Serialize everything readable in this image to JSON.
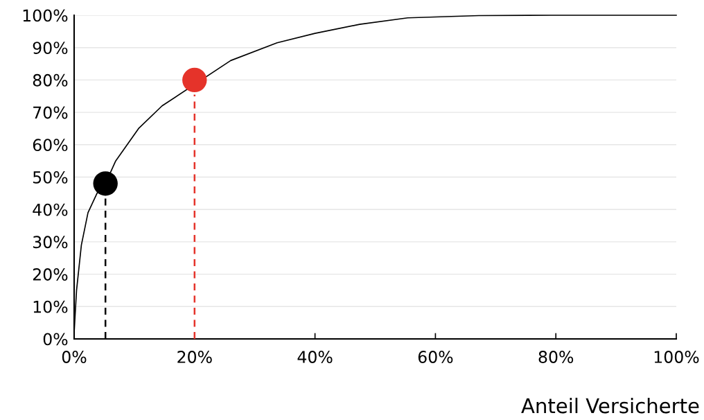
{
  "chart_data": {
    "type": "line",
    "xlabel": "Anteil Versicherte",
    "xlim": [
      0,
      100
    ],
    "ylim": [
      0,
      100
    ],
    "xticks": [
      {
        "value": 0,
        "label": "0%"
      },
      {
        "value": 20,
        "label": "20%"
      },
      {
        "value": 40,
        "label": "40%"
      },
      {
        "value": 60,
        "label": "60%"
      },
      {
        "value": 80,
        "label": "80%"
      },
      {
        "value": 100,
        "label": "100%"
      }
    ],
    "yticks": [
      {
        "value": 0,
        "label": "0%"
      },
      {
        "value": 10,
        "label": "10%"
      },
      {
        "value": 20,
        "label": "20%"
      },
      {
        "value": 30,
        "label": "30%"
      },
      {
        "value": 40,
        "label": "40%"
      },
      {
        "value": 50,
        "label": "50%"
      },
      {
        "value": 60,
        "label": "60%"
      },
      {
        "value": 70,
        "label": "70%"
      },
      {
        "value": 80,
        "label": "80%"
      },
      {
        "value": 90,
        "label": "90%"
      },
      {
        "value": 100,
        "label": "100%"
      }
    ],
    "grid": "y",
    "legend": false,
    "series": [
      {
        "color": "#000000",
        "line_style": "solid",
        "x": [
          0,
          0.4,
          1.2,
          2.3,
          3.8,
          5.2,
          6.9,
          10.7,
          14.6,
          26,
          33.7,
          40,
          47.4,
          55.4,
          67.2,
          79.2,
          91,
          100
        ],
        "values": [
          2,
          15,
          29,
          39,
          45,
          48,
          55,
          65,
          72,
          86,
          91.5,
          94.4,
          97.2,
          99.2,
          99.9,
          100,
          100,
          100
        ]
      },
      {
        "type": "line",
        "color": "#000000",
        "line_style": "dashed",
        "x": [
          5.2,
          5.2
        ],
        "values": [
          0,
          43.5
        ]
      },
      {
        "type": "line",
        "color": "#e5332a",
        "line_style": "dashed",
        "x": [
          20,
          20
        ],
        "values": [
          0,
          75.5
        ]
      },
      {
        "type": "scatter",
        "color": "#000000",
        "marker": "circle",
        "x": [
          5.2
        ],
        "values": [
          48
        ]
      },
      {
        "type": "scatter",
        "color": "#e5332a",
        "marker": "circle",
        "x": [
          20
        ],
        "values": [
          80
        ]
      }
    ]
  }
}
